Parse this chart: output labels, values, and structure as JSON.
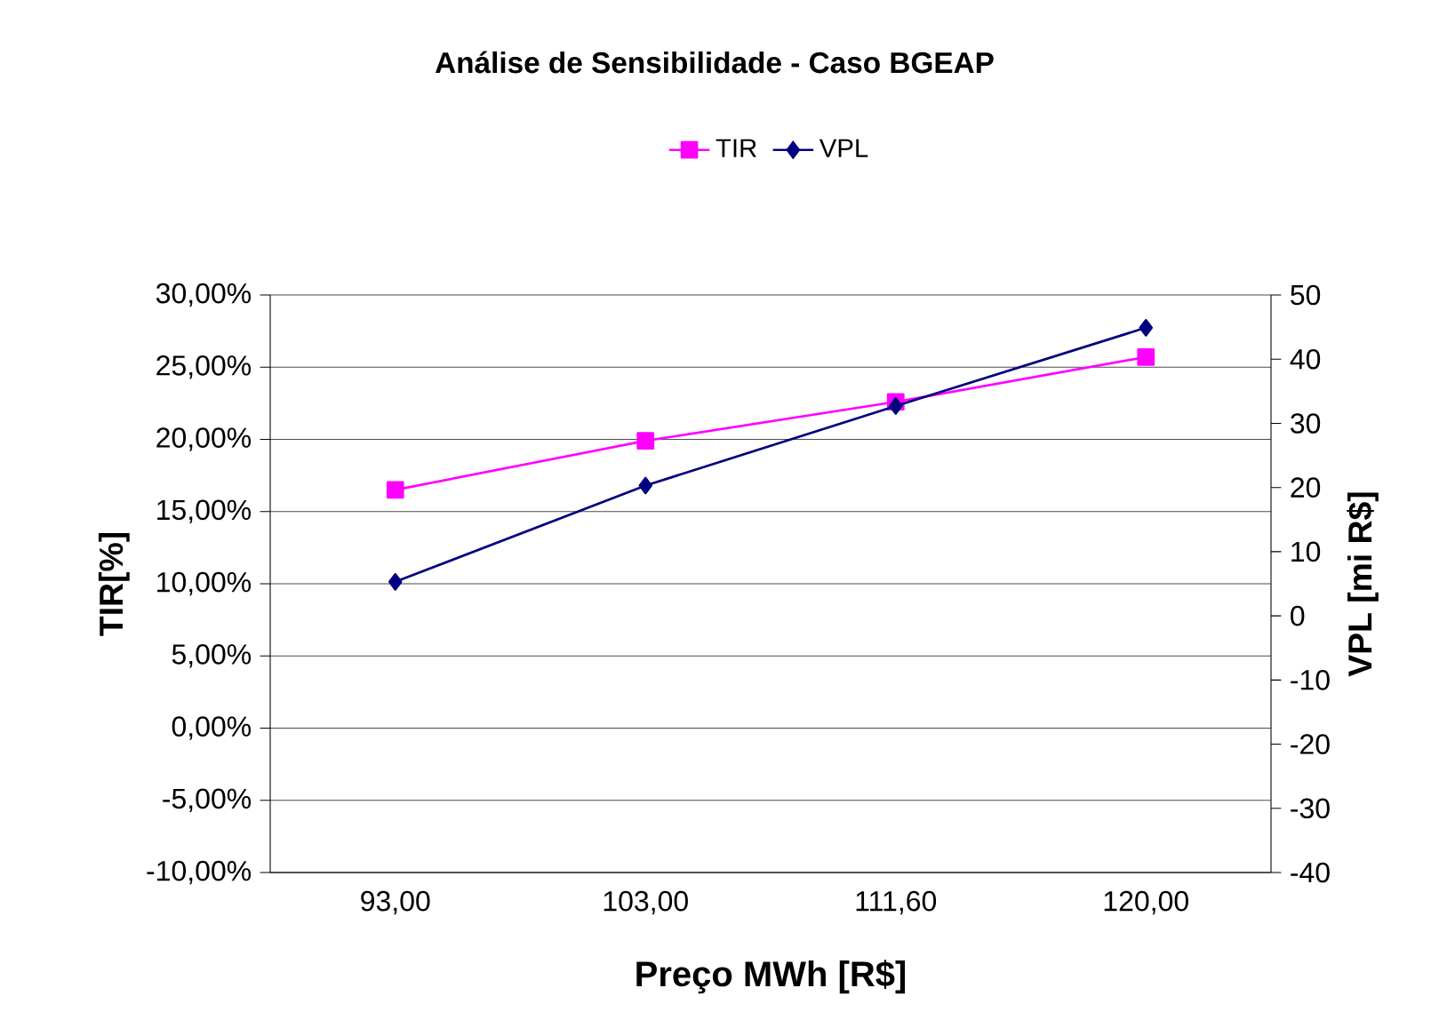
{
  "chart_data": {
    "type": "line",
    "title": "Análise de Sensibilidade - Caso BGEAP",
    "xlabel": "Preço  MWh [R$]",
    "ylabel": "TIR[%]",
    "y2label": "VPL [mi R$]",
    "categories": [
      "93,00",
      "103,00",
      "111,60",
      "120,00"
    ],
    "series": [
      {
        "name": "TIR",
        "color": "#ff00ff",
        "marker": "square",
        "values": [
          16.5,
          19.9,
          22.6,
          25.7
        ]
      },
      {
        "name": "VPL",
        "color": "#000080",
        "marker": "diamond",
        "axis": "y2",
        "values": [
          5.3,
          20.3,
          32.7,
          44.9
        ]
      }
    ],
    "ylim": [
      -10,
      30
    ],
    "yticks": [
      {
        "value": -10,
        "label": "-10,00%"
      },
      {
        "value": -5,
        "label": "-5,00%"
      },
      {
        "value": 0,
        "label": "0,00%"
      },
      {
        "value": 5,
        "label": "5,00%"
      },
      {
        "value": 10,
        "label": "10,00%"
      },
      {
        "value": 15,
        "label": "15,00%"
      },
      {
        "value": 20,
        "label": "20,00%"
      },
      {
        "value": 25,
        "label": "25,00%"
      },
      {
        "value": 30,
        "label": "30,00%"
      }
    ],
    "y2lim": [
      -40,
      50
    ],
    "y2ticks": [
      -40,
      -30,
      -20,
      -10,
      0,
      10,
      20,
      30,
      40,
      50
    ],
    "grid": "y",
    "legend": "top",
    "line_style": "solid"
  }
}
